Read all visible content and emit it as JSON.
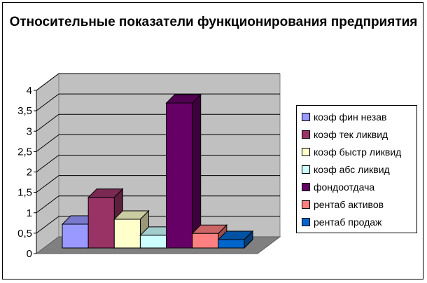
{
  "chart_data": {
    "type": "bar",
    "title": "Относительные показатели функционирования предприятия",
    "y_ticks": [
      "0",
      "0,5",
      "1",
      "1,5",
      "2",
      "2,5",
      "3",
      "3,5",
      "4"
    ],
    "ylim": [
      0,
      4
    ],
    "grid": true,
    "legend_position": "right",
    "series": [
      {
        "name": "коэф фин незав",
        "value": 0.62,
        "color": "#9999FF"
      },
      {
        "name": "коэф тек ликвид",
        "value": 1.32,
        "color": "#993366"
      },
      {
        "name": "коэф быстр ликвид",
        "value": 0.75,
        "color": "#FFFFCC"
      },
      {
        "name": "коэф абс ликвид",
        "value": 0.33,
        "color": "#CCFFFF"
      },
      {
        "name": "фондоотдача",
        "value": 3.78,
        "color": "#660066"
      },
      {
        "name": "рентаб активов",
        "value": 0.38,
        "color": "#FF8080"
      },
      {
        "name": "рентаб продаж",
        "value": 0.22,
        "color": "#0066CC"
      }
    ]
  }
}
